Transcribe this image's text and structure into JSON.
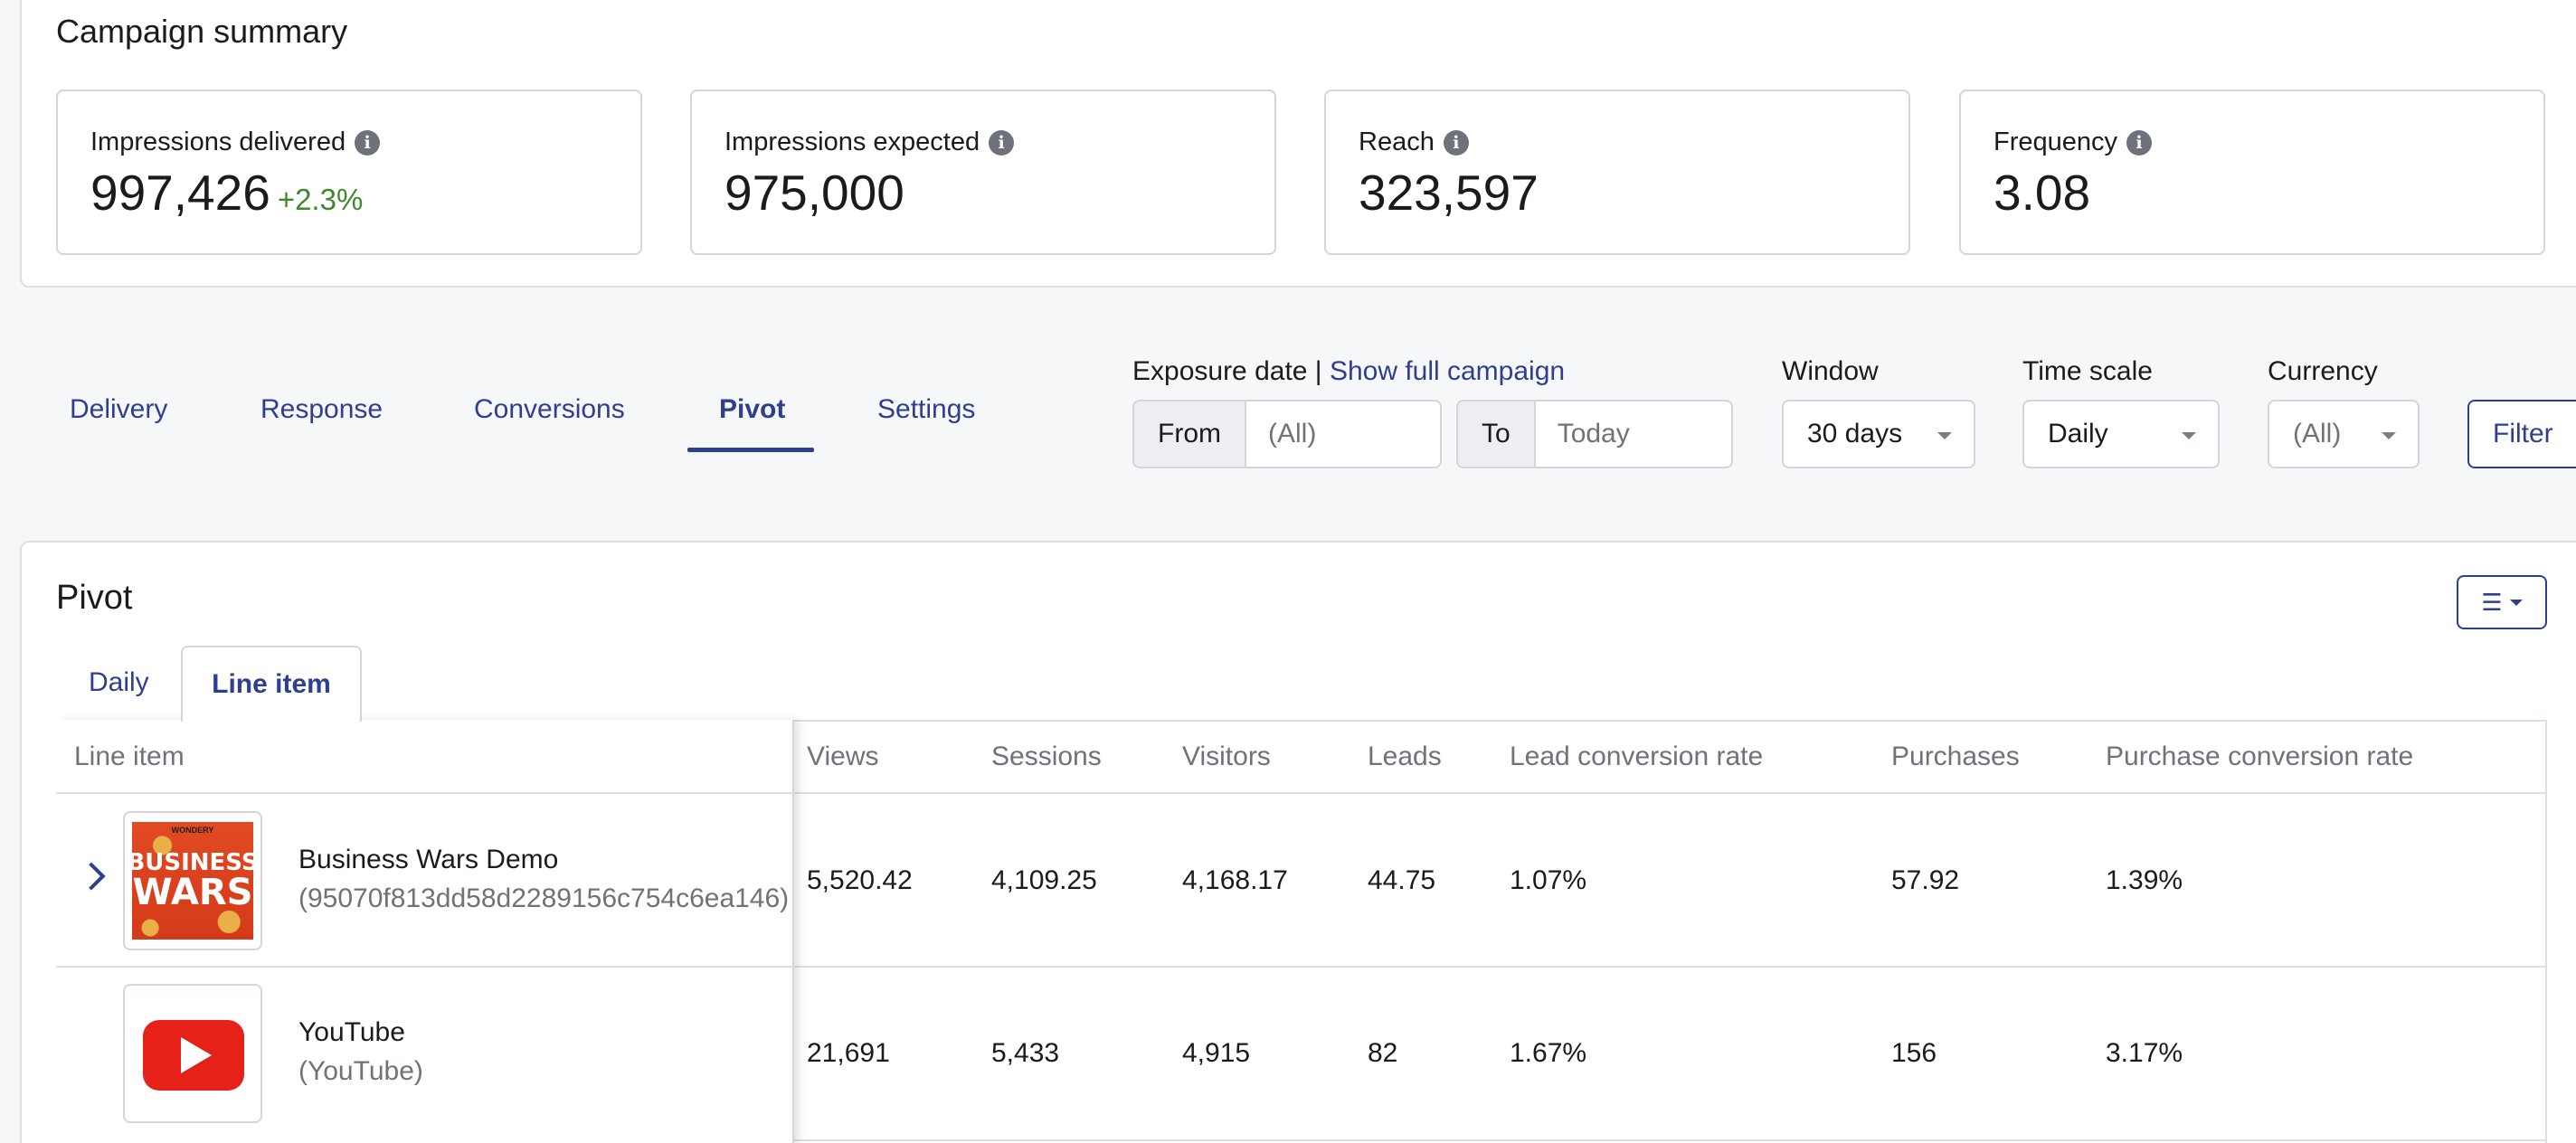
{
  "summary": {
    "title": "Campaign summary",
    "metrics": [
      {
        "label": "Impressions delivered",
        "value": "997,426",
        "change": "+2.3%"
      },
      {
        "label": "Impressions expected",
        "value": "975,000"
      },
      {
        "label": "Reach",
        "value": "323,597"
      },
      {
        "label": "Frequency",
        "value": "3.08"
      }
    ]
  },
  "nav": {
    "tabs": [
      "Delivery",
      "Response",
      "Conversions",
      "Pivot",
      "Settings"
    ],
    "active": "Pivot"
  },
  "filters": {
    "exposure_label": "Exposure date |",
    "show_full": "Show full campaign",
    "from_prefix": "From",
    "from_value": "(All)",
    "to_prefix": "To",
    "to_value": "Today",
    "window_label": "Window",
    "window_value": "30 days",
    "timescale_label": "Time scale",
    "timescale_value": "Daily",
    "currency_label": "Currency",
    "currency_value": "(All)",
    "filter_button": "Filter"
  },
  "pivot": {
    "title": "Pivot",
    "subtabs": [
      "Daily",
      "Line item"
    ],
    "active_subtab": "Line item",
    "columns": [
      "Line item",
      "Views",
      "Sessions",
      "Visitors",
      "Leads",
      "Lead conversion rate",
      "Purchases",
      "Purchase conversion rate"
    ],
    "rows": [
      {
        "name": "Business Wars Demo",
        "id": "(95070f813dd58d2289156c754c6ea146)",
        "thumb_text": [
          "WONDERY",
          "BUSINESS",
          "WARS"
        ],
        "values": [
          "5,520.42",
          "4,109.25",
          "4,168.17",
          "44.75",
          "1.07%",
          "57.92",
          "1.39%"
        ]
      },
      {
        "name": "YouTube",
        "id": "(YouTube)",
        "values": [
          "21,691",
          "5,433",
          "4,915",
          "82",
          "1.67%",
          "156",
          "3.17%"
        ]
      }
    ]
  },
  "colors": {
    "accent": "#2e3f8f",
    "positive": "#3d8a2c",
    "youtube": "#e62117"
  },
  "icons": [
    "info-icon",
    "chevron-down-icon",
    "chevron-right-icon",
    "column-list-icon",
    "play-icon"
  ]
}
